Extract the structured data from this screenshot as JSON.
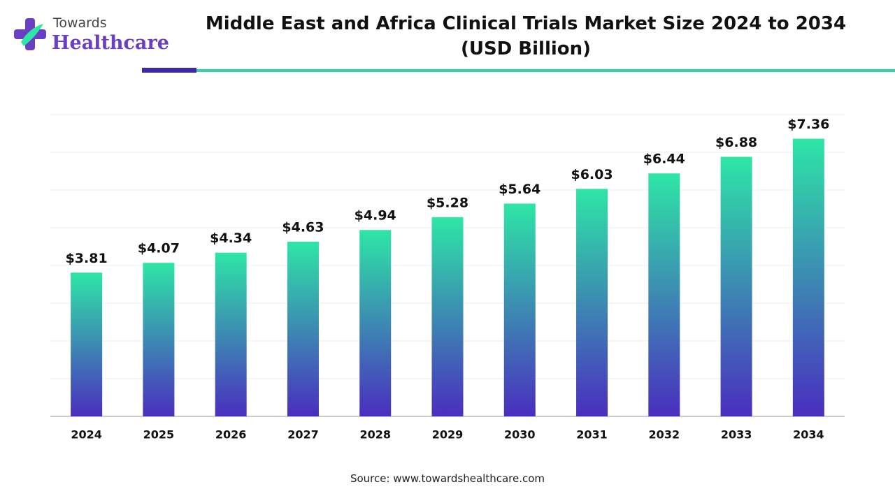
{
  "logo": {
    "line1": "Towards",
    "line2": "Healthcare"
  },
  "chart_data": {
    "type": "bar",
    "title": "Middle East and Africa Clinical Trials Market Size 2024 to 2034 (USD Billion)",
    "categories": [
      "2024",
      "2025",
      "2026",
      "2027",
      "2028",
      "2029",
      "2030",
      "2031",
      "2032",
      "2033",
      "2034"
    ],
    "values": [
      3.81,
      4.07,
      4.34,
      4.63,
      4.94,
      5.28,
      5.64,
      6.03,
      6.44,
      6.88,
      7.36
    ],
    "value_labels": [
      "$3.81",
      "$4.07",
      "$4.34",
      "$4.63",
      "$4.94",
      "$5.28",
      "$5.64",
      "$6.03",
      "$6.44",
      "$6.88",
      "$7.36"
    ],
    "gradient": [
      "#2ee6a6",
      "#4a2ebf"
    ],
    "ylim": [
      0,
      8
    ],
    "yticks": [
      0,
      1,
      2,
      3,
      4,
      5,
      6,
      7,
      8
    ],
    "grid": true,
    "source": "Source: www.towardshealthcare.com"
  }
}
